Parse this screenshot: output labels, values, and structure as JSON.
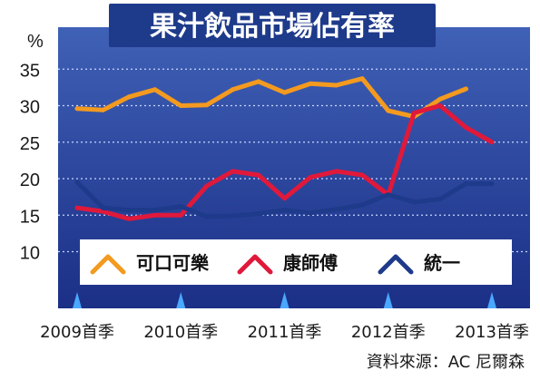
{
  "title": "果汁飲品市場佔有率",
  "source": "資料來源：AC 尼爾森",
  "colors": {
    "plot_bg_top": "#3f61b6",
    "plot_bg_bottom": "#1b2f86",
    "grid": "#c9d6ff",
    "title_bg": "#1e3a8a",
    "title_text": "#ffffff"
  },
  "chart_data": {
    "type": "line",
    "title": "果汁飲品市場佔有率",
    "y_unit": "%",
    "ylim": [
      5,
      35
    ],
    "y_ticks": [
      10,
      15,
      20,
      25,
      30,
      35
    ],
    "x_ticks": [
      "2009首季",
      "2010首季",
      "2011首季",
      "2012首季",
      "2013首季"
    ],
    "x_tick_positions": [
      0,
      4,
      8,
      12,
      16
    ],
    "x": [
      0,
      1,
      2,
      3,
      4,
      5,
      6,
      7,
      8,
      9,
      10,
      11,
      12,
      13,
      14,
      15,
      16
    ],
    "series": [
      {
        "name": "可口可樂",
        "color": "#f39a1f",
        "values": [
          29.6,
          29.4,
          31.2,
          32.2,
          30.0,
          30.1,
          32.2,
          33.3,
          31.8,
          33.0,
          32.8,
          33.7,
          29.3,
          28.5,
          30.9,
          32.3,
          null
        ]
      },
      {
        "name": "康師傅",
        "color": "#e0193b",
        "values": [
          16.0,
          15.5,
          14.5,
          15.0,
          15.0,
          19.0,
          21.0,
          20.5,
          17.3,
          20.2,
          21.0,
          20.5,
          17.8,
          29.0,
          30.0,
          27.0,
          25.0
        ]
      },
      {
        "name": "統一",
        "color": "#1e3a8a",
        "values": [
          19.5,
          16.0,
          15.7,
          15.7,
          16.2,
          14.8,
          14.9,
          15.2,
          15.7,
          15.3,
          15.8,
          16.4,
          17.8,
          16.8,
          17.2,
          19.3,
          19.3
        ]
      }
    ],
    "grid": true,
    "legend": "bottom"
  }
}
